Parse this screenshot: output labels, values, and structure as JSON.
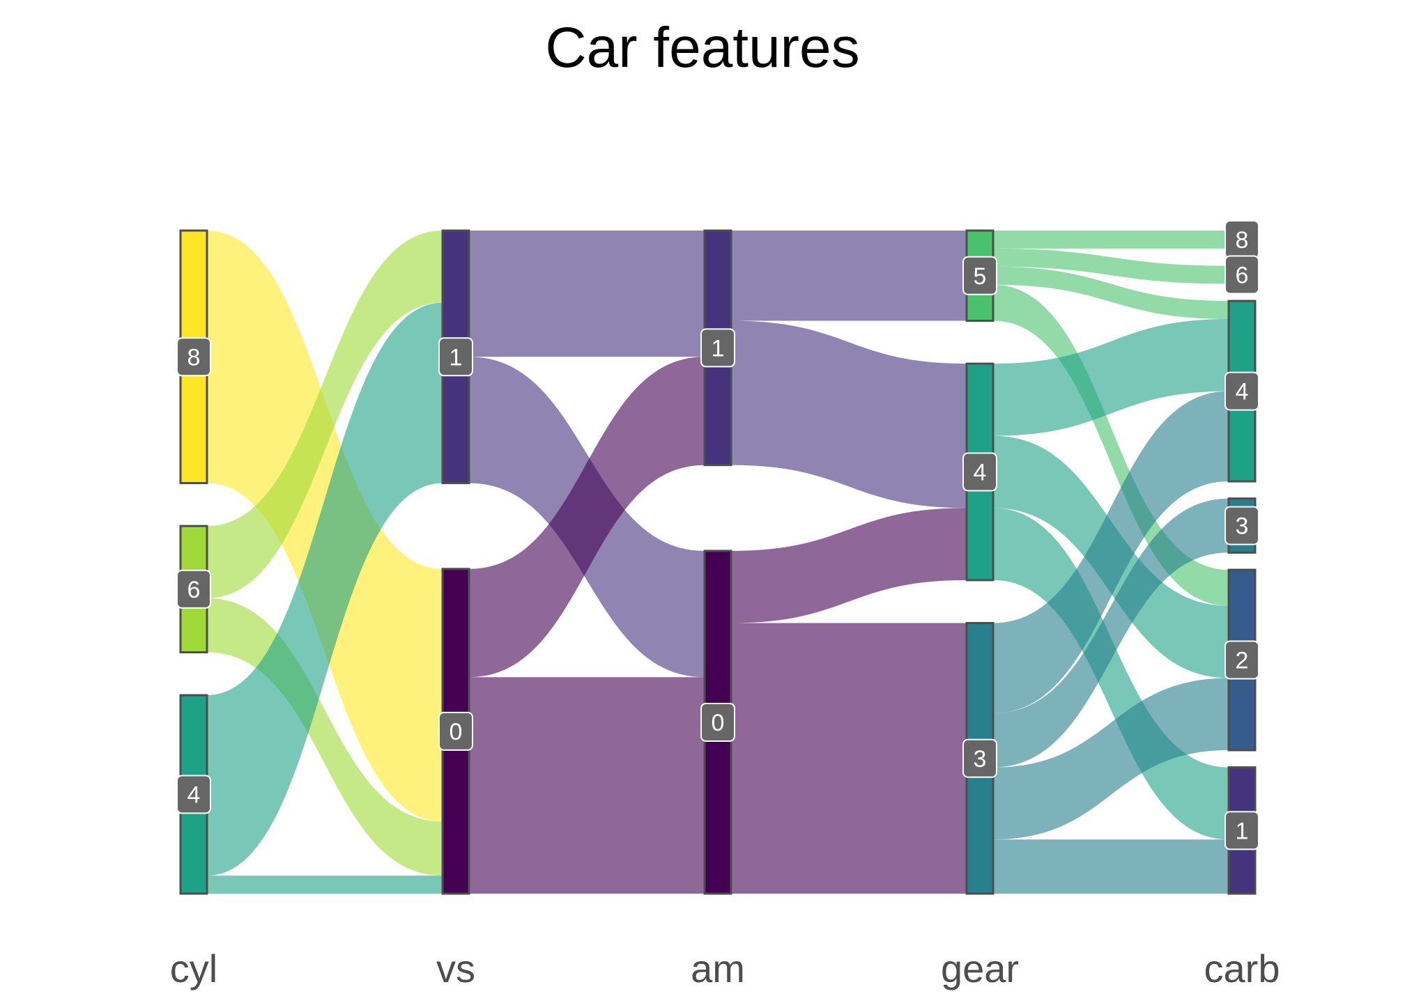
{
  "chart_data": {
    "type": "sankey",
    "title": "Car features",
    "stages": [
      "cyl",
      "vs",
      "am",
      "gear",
      "carb"
    ],
    "nodes": {
      "cyl": [
        {
          "label": "8",
          "count": 14,
          "color": "#FDE725"
        },
        {
          "label": "6",
          "count": 7,
          "color": "#A0DA39"
        },
        {
          "label": "4",
          "count": 11,
          "color": "#1FA187"
        }
      ],
      "vs": [
        {
          "label": "1",
          "count": 14,
          "color": "#46337E"
        },
        {
          "label": "0",
          "count": 18,
          "color": "#440154"
        }
      ],
      "am": [
        {
          "label": "1",
          "count": 13,
          "color": "#46337E"
        },
        {
          "label": "0",
          "count": 19,
          "color": "#440154"
        }
      ],
      "gear": [
        {
          "label": "5",
          "count": 5,
          "color": "#4AC16D"
        },
        {
          "label": "4",
          "count": 12,
          "color": "#1FA187"
        },
        {
          "label": "3",
          "count": 15,
          "color": "#277F8E"
        }
      ],
      "carb": [
        {
          "label": "8",
          "count": 1,
          "color": "#FDE725"
        },
        {
          "label": "6",
          "count": 1,
          "color": "#A0DA39"
        },
        {
          "label": "4",
          "count": 10,
          "color": "#1FA187"
        },
        {
          "label": "3",
          "count": 3,
          "color": "#277F8E"
        },
        {
          "label": "2",
          "count": 10,
          "color": "#365C8D"
        },
        {
          "label": "1",
          "count": 7,
          "color": "#46337E"
        }
      ]
    },
    "flows": [
      {
        "stage": 0,
        "from": "8",
        "to": "0",
        "value": 14,
        "color": "#FDE725"
      },
      {
        "stage": 0,
        "from": "6",
        "to": "1",
        "value": 4,
        "color": "#A0DA39"
      },
      {
        "stage": 0,
        "from": "6",
        "to": "0",
        "value": 3,
        "color": "#A0DA39"
      },
      {
        "stage": 0,
        "from": "4",
        "to": "1",
        "value": 10,
        "color": "#1FA187"
      },
      {
        "stage": 0,
        "from": "4",
        "to": "0",
        "value": 1,
        "color": "#1FA187"
      },
      {
        "stage": 1,
        "from": "1",
        "to": "1",
        "value": 7,
        "color": "#46337E"
      },
      {
        "stage": 1,
        "from": "1",
        "to": "0",
        "value": 7,
        "color": "#46337E"
      },
      {
        "stage": 1,
        "from": "0",
        "to": "1",
        "value": 6,
        "color": "#440154"
      },
      {
        "stage": 1,
        "from": "0",
        "to": "0",
        "value": 12,
        "color": "#440154"
      },
      {
        "stage": 2,
        "from": "1",
        "to": "5",
        "value": 5,
        "color": "#46337E"
      },
      {
        "stage": 2,
        "from": "1",
        "to": "4",
        "value": 8,
        "color": "#46337E"
      },
      {
        "stage": 2,
        "from": "0",
        "to": "4",
        "value": 4,
        "color": "#440154"
      },
      {
        "stage": 2,
        "from": "0",
        "to": "3",
        "value": 15,
        "color": "#440154"
      },
      {
        "stage": 3,
        "from": "5",
        "to": "8",
        "value": 1,
        "color": "#4AC16D"
      },
      {
        "stage": 3,
        "from": "5",
        "to": "6",
        "value": 1,
        "color": "#4AC16D"
      },
      {
        "stage": 3,
        "from": "5",
        "to": "4",
        "value": 1,
        "color": "#4AC16D"
      },
      {
        "stage": 3,
        "from": "5",
        "to": "2",
        "value": 2,
        "color": "#4AC16D"
      },
      {
        "stage": 3,
        "from": "4",
        "to": "4",
        "value": 4,
        "color": "#1FA187"
      },
      {
        "stage": 3,
        "from": "4",
        "to": "2",
        "value": 4,
        "color": "#1FA187"
      },
      {
        "stage": 3,
        "from": "4",
        "to": "1",
        "value": 4,
        "color": "#1FA187"
      },
      {
        "stage": 3,
        "from": "3",
        "to": "4",
        "value": 5,
        "color": "#277F8E"
      },
      {
        "stage": 3,
        "from": "3",
        "to": "3",
        "value": 3,
        "color": "#277F8E"
      },
      {
        "stage": 3,
        "from": "3",
        "to": "2",
        "value": 4,
        "color": "#277F8E"
      },
      {
        "stage": 3,
        "from": "3",
        "to": "1",
        "value": 3,
        "color": "#277F8E"
      }
    ],
    "colors": {
      "node_border": "#4d4d4d",
      "label_background": "#666666",
      "label_text": "#ffffff",
      "axis_text": "#4d4d4d",
      "title_text": "#000000"
    }
  }
}
